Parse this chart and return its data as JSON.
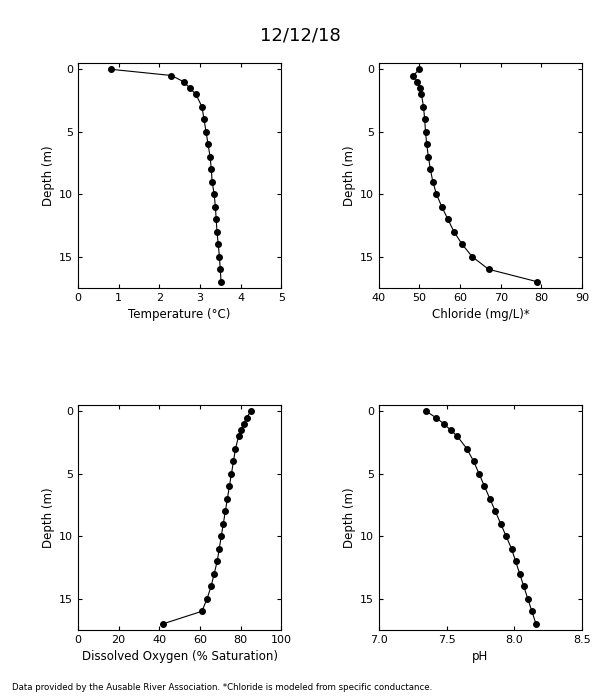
{
  "title": "12/12/18",
  "footnote": "Data provided by the Ausable River Association. *Chloride is modeled from specific conductance.",
  "temp": {
    "depth": [
      0,
      0.5,
      1,
      1.5,
      2,
      3,
      4,
      5,
      6,
      7,
      8,
      9,
      10,
      11,
      12,
      13,
      14,
      15,
      16,
      17
    ],
    "values": [
      0.8,
      2.3,
      2.6,
      2.75,
      2.9,
      3.05,
      3.1,
      3.15,
      3.2,
      3.25,
      3.28,
      3.3,
      3.35,
      3.38,
      3.4,
      3.42,
      3.45,
      3.48,
      3.5,
      3.52
    ],
    "xlabel": "Temperature (°C)",
    "xlim": [
      0,
      5
    ],
    "xticks": [
      0,
      1,
      2,
      3,
      4,
      5
    ]
  },
  "chloride": {
    "depth": [
      0,
      0.5,
      1,
      1.5,
      2,
      3,
      4,
      5,
      6,
      7,
      8,
      9,
      10,
      11,
      12,
      13,
      14,
      15,
      16,
      17
    ],
    "values": [
      50.0,
      48.5,
      49.5,
      50.2,
      50.5,
      51.0,
      51.3,
      51.5,
      51.8,
      52.2,
      52.7,
      53.3,
      54.2,
      55.5,
      57.0,
      58.5,
      60.5,
      63.0,
      67.0,
      79.0
    ],
    "xlabel": "Chloride (mg/L)*",
    "xlim": [
      40,
      90
    ],
    "xticks": [
      40,
      50,
      60,
      70,
      80,
      90
    ]
  },
  "do": {
    "depth": [
      0,
      0.5,
      1,
      1.5,
      2,
      3,
      4,
      5,
      6,
      7,
      8,
      9,
      10,
      11,
      12,
      13,
      14,
      15,
      16,
      17
    ],
    "values": [
      85.0,
      83.0,
      81.5,
      80.0,
      79.0,
      77.5,
      76.5,
      75.5,
      74.5,
      73.5,
      72.5,
      71.5,
      70.5,
      69.5,
      68.5,
      67.0,
      65.5,
      63.5,
      61.0,
      42.0
    ],
    "xlabel": "Dissolved Oxygen (% Saturation)",
    "xlim": [
      0,
      100
    ],
    "xticks": [
      0,
      20,
      40,
      60,
      80,
      100
    ]
  },
  "ph": {
    "depth": [
      0,
      0.5,
      1,
      1.5,
      2,
      3,
      4,
      5,
      6,
      7,
      8,
      9,
      10,
      11,
      12,
      13,
      14,
      15,
      16,
      17
    ],
    "values": [
      7.35,
      7.42,
      7.48,
      7.53,
      7.58,
      7.65,
      7.7,
      7.74,
      7.78,
      7.82,
      7.86,
      7.9,
      7.94,
      7.98,
      8.01,
      8.04,
      8.07,
      8.1,
      8.13,
      8.16
    ],
    "xlabel": "pH",
    "xlim": [
      7.0,
      8.5
    ],
    "xticks": [
      7.0,
      7.5,
      8.0,
      8.5
    ]
  },
  "ylim": [
    17.5,
    -0.5
  ],
  "yticks": [
    0,
    5,
    10,
    15
  ],
  "ylabel": "Depth (m)"
}
